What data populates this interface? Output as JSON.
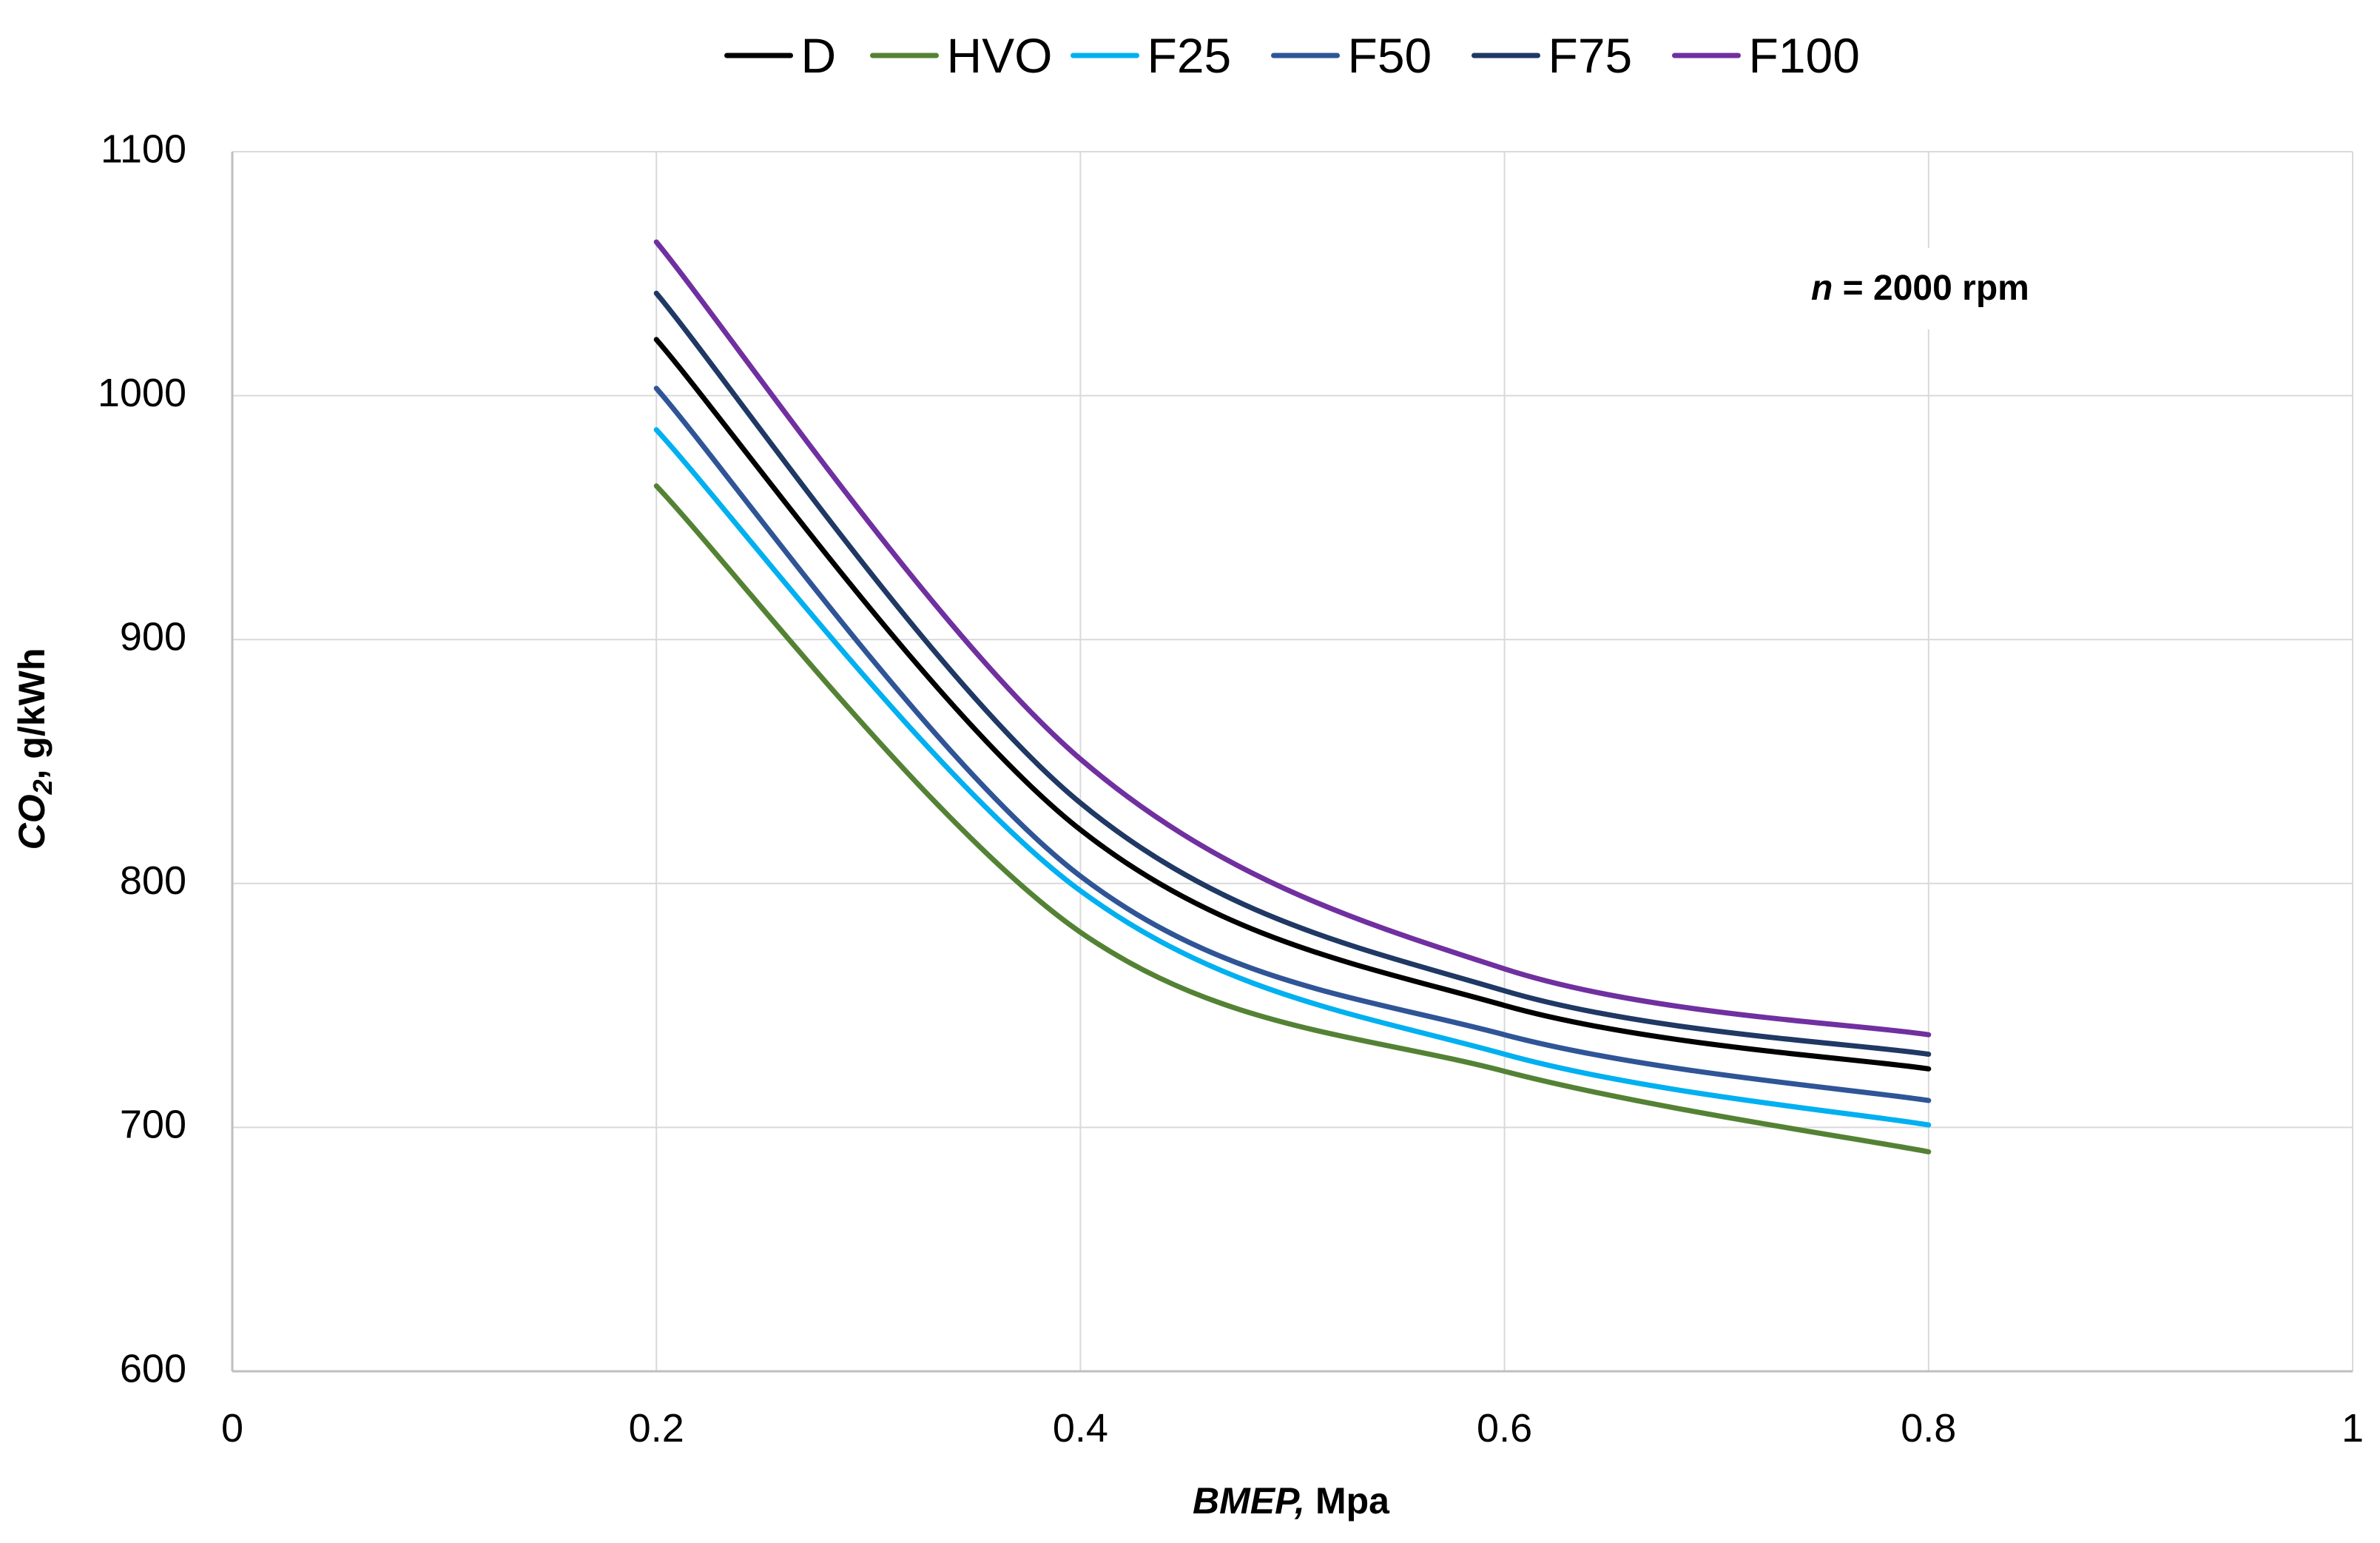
{
  "chart_data": {
    "type": "line",
    "title": "",
    "xlabel": {
      "italic": "BMEP,",
      "regular": "Mpa"
    },
    "ylabel": {
      "italic": "CO",
      "sub": "2",
      "rest": ", g/kWh"
    },
    "xlim": [
      0,
      1
    ],
    "ylim": [
      600,
      1100
    ],
    "xticks": [
      0,
      0.2,
      0.4,
      0.6,
      0.8,
      1
    ],
    "xtick_labels": [
      "0",
      "0.2",
      "0.4",
      "0.6",
      "0.8",
      "1"
    ],
    "yticks": [
      600,
      700,
      800,
      900,
      1000,
      1100
    ],
    "ytick_labels": [
      "600",
      "700",
      "800",
      "900",
      "1000",
      "1100"
    ],
    "grid": true,
    "legend_position": "top",
    "annotation": {
      "italic": "n",
      "text": " = 2000 rpm"
    },
    "x": [
      0.2,
      0.4,
      0.6,
      0.8
    ],
    "series": [
      {
        "name": "D",
        "color": "#000000",
        "values": [
          1023,
          822,
          750,
          724
        ]
      },
      {
        "name": "HVO",
        "color": "#548235",
        "values": [
          963,
          780,
          723,
          690
        ]
      },
      {
        "name": "F25",
        "color": "#00B0F0",
        "values": [
          986,
          797,
          730,
          701
        ]
      },
      {
        "name": "F50",
        "color": "#2F5597",
        "values": [
          1003,
          803,
          738,
          711
        ]
      },
      {
        "name": "F75",
        "color": "#1F3864",
        "values": [
          1042,
          833,
          756,
          730
        ]
      },
      {
        "name": "F100",
        "color": "#7030A0",
        "values": [
          1063,
          851,
          765,
          738
        ]
      }
    ]
  }
}
